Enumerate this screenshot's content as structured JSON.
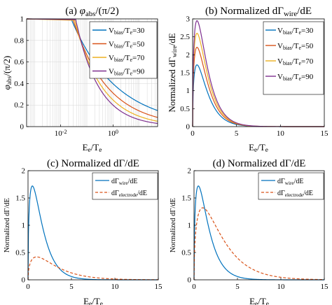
{
  "colors": {
    "blue": "#0072BD",
    "red": "#D95319",
    "yellow": "#EDB120",
    "purple": "#7E2F8E",
    "orange_dash": "#D95319"
  },
  "chart_data": [
    {
      "panel": "a",
      "type": "line",
      "title_prefix": "(a) ",
      "title_sym": "φ",
      "title_sub": "abs",
      "title_suffix": "/(π/2)",
      "xlabel_main": "E",
      "xlabel_sub1": "e",
      "xlabel_mid": "/T",
      "xlabel_sub2": "e",
      "ylabel_sym": "φ",
      "ylabel_sub": "abs",
      "ylabel_suffix": "/(π/2)",
      "x_scale": "log",
      "xlim": [
        0.0005,
        50
      ],
      "ylim": [
        0,
        1
      ],
      "xticks": [
        "10",
        "10"
      ],
      "xtick_exps": [
        "-2",
        "0"
      ],
      "yticks": [
        "0",
        "0.2",
        "0.4",
        "0.6",
        "0.8",
        "1"
      ],
      "grid": "on",
      "series": [
        {
          "name_main": "V",
          "name_sub1": "bias",
          "name_mid": "/T",
          "name_sub2": "e",
          "name_end": "=30",
          "color": "blue",
          "vbias": 30
        },
        {
          "name_main": "V",
          "name_sub1": "bias",
          "name_mid": "/T",
          "name_sub2": "e",
          "name_end": "=50",
          "color": "red",
          "vbias": 50
        },
        {
          "name_main": "V",
          "name_sub1": "bias",
          "name_mid": "/T",
          "name_sub2": "e",
          "name_end": "=70",
          "color": "yellow",
          "vbias": 70
        },
        {
          "name_main": "V",
          "name_sub1": "bias",
          "name_mid": "/T",
          "name_sub2": "e",
          "name_end": "=90",
          "color": "purple",
          "vbias": 90
        }
      ],
      "legend": "top-right"
    },
    {
      "panel": "b",
      "type": "line",
      "title_text": "(b) Normalized dΓ",
      "title_sub": "wire",
      "title_suffix": "/dE",
      "xlabel_main": "E",
      "xlabel_sub1": "e",
      "xlabel_mid": "/T",
      "xlabel_sub2": "e",
      "ylabel_text": "Normalized dΓ",
      "ylabel_sub": "wire",
      "ylabel_suffix": "/dE",
      "xlim": [
        0,
        15
      ],
      "ylim": [
        0,
        3
      ],
      "xticks": [
        "0",
        "5",
        "10",
        "15"
      ],
      "yticks": [
        "0",
        "0.5",
        "1",
        "1.5",
        "2",
        "2.5",
        "3"
      ],
      "series": [
        {
          "name_main": "V",
          "name_sub1": "bias",
          "name_mid": "/T",
          "name_sub2": "e",
          "name_end": "=30",
          "color": "blue",
          "peak": 1.72
        },
        {
          "name_main": "V",
          "name_sub1": "bias",
          "name_mid": "/T",
          "name_sub2": "e",
          "name_end": "=50",
          "color": "red",
          "peak": 2.21
        },
        {
          "name_main": "V",
          "name_sub1": "bias",
          "name_mid": "/T",
          "name_sub2": "e",
          "name_end": "=70",
          "color": "yellow",
          "peak": 2.6
        },
        {
          "name_main": "V",
          "name_sub1": "bias",
          "name_mid": "/T",
          "name_sub2": "e",
          "name_end": "=90",
          "color": "purple",
          "peak": 2.95
        }
      ],
      "peak_x": 0.5,
      "legend": "top-right"
    },
    {
      "panel": "c",
      "type": "line",
      "title_text": "(c) Normalized dΓ/dE",
      "xlabel_main": "E",
      "xlabel_sub1": "e",
      "xlabel_mid": "/T",
      "xlabel_sub2": "e",
      "ylabel": "Normalized dΓ/dE",
      "xlim": [
        0,
        15
      ],
      "ylim": [
        0,
        2
      ],
      "xticks": [
        "0",
        "5",
        "10",
        "15"
      ],
      "yticks": [
        "0",
        "0.5",
        "1",
        "1.5",
        "2"
      ],
      "series": [
        {
          "name_main": "dΓ",
          "name_sub": "wire",
          "name_end": "/dE",
          "color": "blue",
          "style": "solid",
          "peak": 1.72,
          "peak_x": 0.5
        },
        {
          "name_main": "dΓ",
          "name_sub": "electrode",
          "name_end": "/dE",
          "color": "orange_dash",
          "style": "dashed",
          "peak": 0.42,
          "peak_x": 1.0
        }
      ],
      "legend": "top-right"
    },
    {
      "panel": "d",
      "type": "line",
      "title_text": "(d) Normalized dΓ/dE",
      "xlabel_main": "E",
      "xlabel_sub1": "e",
      "xlabel_mid": "/T",
      "xlabel_sub2": "e",
      "ylabel": "Normalized dΓ/dE",
      "xlim": [
        0,
        15
      ],
      "ylim": [
        0,
        2
      ],
      "xticks": [
        "0",
        "5",
        "10",
        "15"
      ],
      "yticks": [
        "0",
        "0.5",
        "1",
        "1.5",
        "2"
      ],
      "series": [
        {
          "name_main": "dΓ",
          "name_sub": "wire",
          "name_end": "/dE",
          "color": "blue",
          "style": "solid",
          "peak": 1.72,
          "peak_x": 0.5
        },
        {
          "name_main": "dΓ",
          "name_sub": "electrode",
          "name_end": "/dE",
          "color": "orange_dash",
          "style": "dashed",
          "peak": 1.32,
          "peak_x": 1.0
        }
      ],
      "legend": "top-right"
    }
  ]
}
